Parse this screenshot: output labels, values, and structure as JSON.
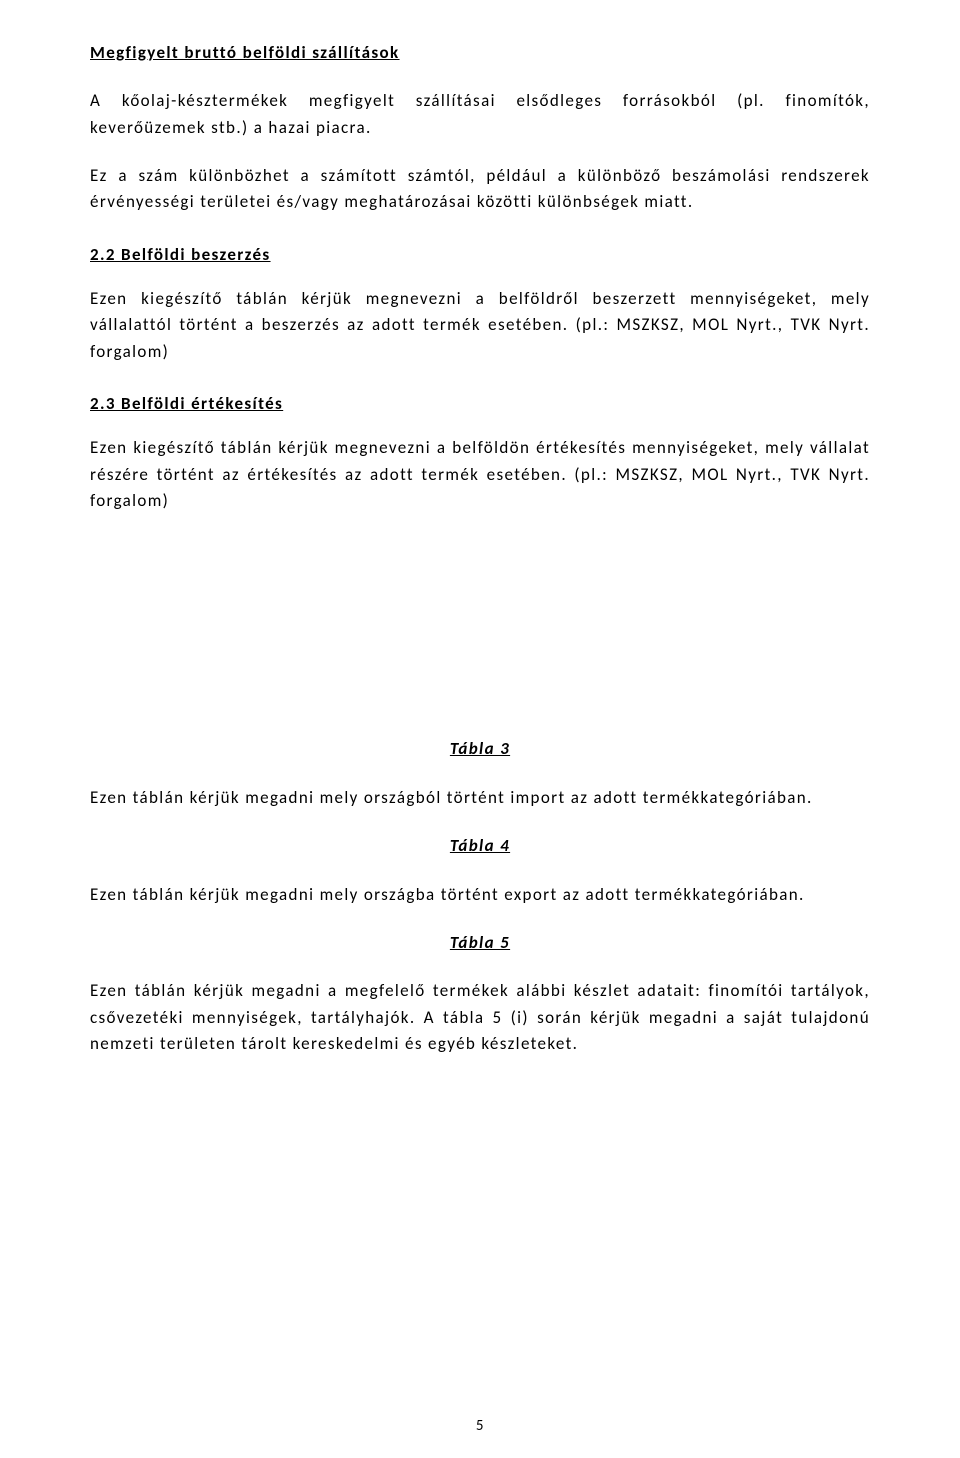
{
  "section_main_heading": "Megfigyelt bruttó belföldi szállítások",
  "main_para": "A kőolaj-késztermékek megfigyelt szállításai elsődleges forrásokból (pl. finomítók, keverőüzemek stb.) a hazai piacra.",
  "main_para2": "Ez a szám különbözhet a számított számtól, például a különböző beszámolási rendszerek érvényességi területei és/vagy meghatározásai közötti különbségek miatt.",
  "sec22_heading": "2.2 Belföldi beszerzés",
  "sec22_para": "Ezen kiegészítő táblán kérjük megnevezni a belföldről beszerzett mennyiségeket, mely vállalattól történt a beszerzés az adott termék esetében. (pl.: MSZKSZ, MOL Nyrt., TVK Nyrt. forgalom)",
  "sec23_heading": "2.3 Belföldi értékesítés",
  "sec23_para": "Ezen kiegészítő táblán kérjük megnevezni a belföldön értékesítés mennyiségeket, mely vállalat részére történt az értékesítés az adott termék esetében. (pl.: MSZKSZ, MOL Nyrt., TVK Nyrt. forgalom)",
  "table3_heading": "Tábla 3",
  "table3_para": "Ezen táblán kérjük megadni mely országból történt import az adott termékkategóriában.",
  "table4_heading": "Tábla 4",
  "table4_para": "Ezen táblán kérjük megadni mely országba történt export az adott termékkategóriában.",
  "table5_heading": "Tábla 5",
  "table5_para": "Ezen táblán kérjük megadni a megfelelő termékek alábbi készlet adatait: finomítói tartályok, csővezetéki mennyiségek, tartályhajók. A tábla 5 (i) során kérjük megadni a saját tulajdonú nemzeti területen tárolt kereskedelmi és egyéb készleteket.",
  "page_number": "5"
}
